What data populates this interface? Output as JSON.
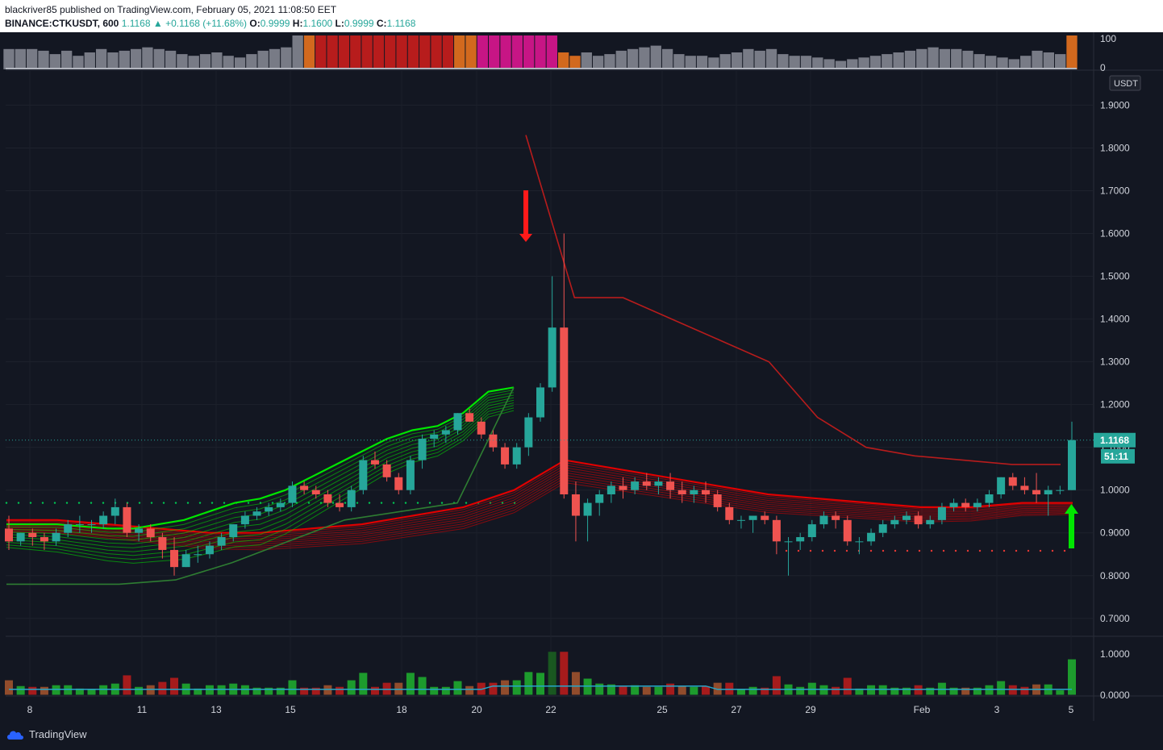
{
  "header": {
    "publisher_line": "blackriver85 published on TradingView.com, February 05, 2021 11:08:50 EET",
    "symbol": "BINANCE:CTKUSDT, 600",
    "last": "1.1168",
    "change": "+0.1168 (+11.68%)",
    "o_label": "O:",
    "o": "0.9999",
    "h_label": "H:",
    "h": "1.1600",
    "l_label": "L:",
    "l": "0.9999",
    "c_label": "C:",
    "c": "1.1168"
  },
  "price_axis": {
    "currency": "USDT",
    "ticks": [
      "1.9000",
      "1.8000",
      "1.7000",
      "1.6000",
      "1.5000",
      "1.4000",
      "1.3000",
      "1.2000",
      "1.1000",
      "1.0000",
      "0.9000",
      "0.8000",
      "0.7000"
    ],
    "last_price_label": "1.1168",
    "countdown_label": "51:11"
  },
  "osc_axis": {
    "ticks": [
      "100",
      "0"
    ]
  },
  "vol_axis": {
    "ticks": [
      "1.0000",
      "0.0000"
    ]
  },
  "time_axis": {
    "ticks": [
      "8",
      "11",
      "13",
      "15",
      "18",
      "20",
      "22",
      "25",
      "27",
      "29",
      "Feb",
      "3",
      "5"
    ]
  },
  "footer": {
    "brand": "TradingView"
  },
  "colors": {
    "background": "#131722",
    "up_candle": "#26a69a",
    "down_candle": "#ef5350",
    "ribbon_green": "#00e600",
    "ribbon_red": "#e00000",
    "trail_dark_red": "#b71c1c",
    "trail_dark_green": "#1b5e20"
  },
  "chart_data": {
    "type": "candlestick",
    "symbol": "BINANCE:CTKUSDT",
    "x": [
      "8",
      "11",
      "13",
      "15",
      "18",
      "20",
      "22",
      "25",
      "27",
      "29",
      "Feb",
      "3",
      "5"
    ],
    "ylim": [
      0.66,
      1.98
    ],
    "candles": [
      [
        0.91,
        0.94,
        0.86,
        0.88
      ],
      [
        0.88,
        0.9,
        0.87,
        0.9
      ],
      [
        0.9,
        0.91,
        0.87,
        0.89
      ],
      [
        0.89,
        0.9,
        0.86,
        0.88
      ],
      [
        0.88,
        0.91,
        0.87,
        0.9
      ],
      [
        0.9,
        0.93,
        0.89,
        0.92
      ],
      [
        0.92,
        0.94,
        0.9,
        0.92
      ],
      [
        0.92,
        0.93,
        0.9,
        0.92
      ],
      [
        0.92,
        0.95,
        0.91,
        0.94
      ],
      [
        0.94,
        0.98,
        0.92,
        0.96
      ],
      [
        0.96,
        0.97,
        0.89,
        0.9
      ],
      [
        0.9,
        0.92,
        0.88,
        0.91
      ],
      [
        0.91,
        0.92,
        0.88,
        0.89
      ],
      [
        0.89,
        0.9,
        0.84,
        0.86
      ],
      [
        0.86,
        0.89,
        0.8,
        0.82
      ],
      [
        0.82,
        0.86,
        0.82,
        0.85
      ],
      [
        0.85,
        0.87,
        0.83,
        0.85
      ],
      [
        0.85,
        0.88,
        0.84,
        0.87
      ],
      [
        0.87,
        0.9,
        0.86,
        0.89
      ],
      [
        0.89,
        0.92,
        0.88,
        0.92
      ],
      [
        0.92,
        0.95,
        0.91,
        0.94
      ],
      [
        0.94,
        0.96,
        0.93,
        0.95
      ],
      [
        0.95,
        0.97,
        0.94,
        0.96
      ],
      [
        0.96,
        0.98,
        0.95,
        0.97
      ],
      [
        0.97,
        1.02,
        0.96,
        1.01
      ],
      [
        1.01,
        1.02,
        0.99,
        1.0
      ],
      [
        1.0,
        1.01,
        0.98,
        0.99
      ],
      [
        0.99,
        1.0,
        0.96,
        0.97
      ],
      [
        0.97,
        0.99,
        0.95,
        0.96
      ],
      [
        0.96,
        1.01,
        0.95,
        1.0
      ],
      [
        1.0,
        1.08,
        0.99,
        1.07
      ],
      [
        1.07,
        1.09,
        1.05,
        1.06
      ],
      [
        1.06,
        1.07,
        1.02,
        1.03
      ],
      [
        1.03,
        1.04,
        0.99,
        1.0
      ],
      [
        1.0,
        1.08,
        0.99,
        1.07
      ],
      [
        1.07,
        1.13,
        1.05,
        1.12
      ],
      [
        1.12,
        1.14,
        1.1,
        1.13
      ],
      [
        1.13,
        1.15,
        1.11,
        1.14
      ],
      [
        1.14,
        1.18,
        1.13,
        1.18
      ],
      [
        1.18,
        1.19,
        1.16,
        1.16
      ],
      [
        1.16,
        1.17,
        1.12,
        1.13
      ],
      [
        1.13,
        1.14,
        1.09,
        1.1
      ],
      [
        1.1,
        1.11,
        1.05,
        1.06
      ],
      [
        1.06,
        1.11,
        1.05,
        1.1
      ],
      [
        1.1,
        1.18,
        1.08,
        1.17
      ],
      [
        1.17,
        1.25,
        1.16,
        1.24
      ],
      [
        1.24,
        1.5,
        1.23,
        1.38
      ],
      [
        1.38,
        1.6,
        0.98,
        0.99
      ],
      [
        0.99,
        1.02,
        0.88,
        0.94
      ],
      [
        0.94,
        0.98,
        0.88,
        0.97
      ],
      [
        0.97,
        1.0,
        0.94,
        0.99
      ],
      [
        0.99,
        1.02,
        0.97,
        1.01
      ],
      [
        1.01,
        1.03,
        0.98,
        1.0
      ],
      [
        1.0,
        1.03,
        0.99,
        1.02
      ],
      [
        1.02,
        1.04,
        1.0,
        1.01
      ],
      [
        1.01,
        1.03,
        0.99,
        1.02
      ],
      [
        1.02,
        1.04,
        0.98,
        1.0
      ],
      [
        1.0,
        1.02,
        0.97,
        0.99
      ],
      [
        0.99,
        1.01,
        0.97,
        1.0
      ],
      [
        1.0,
        1.02,
        0.97,
        0.99
      ],
      [
        0.99,
        1.0,
        0.95,
        0.96
      ],
      [
        0.96,
        0.97,
        0.92,
        0.93
      ],
      [
        0.93,
        0.94,
        0.91,
        0.93
      ],
      [
        0.93,
        0.94,
        0.9,
        0.94
      ],
      [
        0.94,
        0.95,
        0.92,
        0.93
      ],
      [
        0.93,
        0.94,
        0.85,
        0.88
      ],
      [
        0.88,
        0.89,
        0.8,
        0.88
      ],
      [
        0.88,
        0.9,
        0.86,
        0.89
      ],
      [
        0.89,
        0.93,
        0.88,
        0.92
      ],
      [
        0.92,
        0.95,
        0.91,
        0.94
      ],
      [
        0.94,
        0.95,
        0.91,
        0.93
      ],
      [
        0.93,
        0.94,
        0.87,
        0.88
      ],
      [
        0.88,
        0.89,
        0.85,
        0.88
      ],
      [
        0.88,
        0.91,
        0.87,
        0.9
      ],
      [
        0.9,
        0.93,
        0.89,
        0.92
      ],
      [
        0.92,
        0.94,
        0.91,
        0.93
      ],
      [
        0.93,
        0.95,
        0.92,
        0.94
      ],
      [
        0.94,
        0.95,
        0.91,
        0.92
      ],
      [
        0.92,
        0.94,
        0.91,
        0.93
      ],
      [
        0.93,
        0.97,
        0.92,
        0.96
      ],
      [
        0.96,
        0.98,
        0.95,
        0.97
      ],
      [
        0.97,
        0.98,
        0.95,
        0.96
      ],
      [
        0.96,
        0.98,
        0.95,
        0.97
      ],
      [
        0.97,
        1.0,
        0.96,
        0.99
      ],
      [
        0.99,
        1.03,
        0.98,
        1.03
      ],
      [
        1.03,
        1.04,
        1.0,
        1.01
      ],
      [
        1.01,
        1.03,
        0.99,
        1.0
      ],
      [
        1.0,
        1.04,
        0.97,
        0.99
      ],
      [
        0.99,
        1.01,
        0.94,
        1.0
      ],
      [
        1.0,
        1.01,
        0.99,
        1.0
      ],
      [
        0.9999,
        1.16,
        0.9999,
        1.1168
      ]
    ],
    "ribbon_green_top": [
      0.92,
      0.92,
      0.92,
      0.915,
      0.91,
      0.91,
      0.92,
      0.93,
      0.95,
      0.97,
      0.98,
      1.0,
      1.03,
      1.06,
      1.09,
      1.12,
      1.14,
      1.15,
      1.18,
      1.23,
      1.24
    ],
    "ribbon_red_top": [
      0.93,
      0.93,
      0.92,
      0.91,
      0.9,
      0.9,
      0.91,
      0.92,
      0.94,
      0.96,
      1.0,
      1.07,
      1.05,
      1.03,
      1.01,
      0.99,
      0.98,
      0.97,
      0.96,
      0.96,
      0.97,
      0.97
    ],
    "stepped_upper": [
      1.83,
      1.45,
      1.45,
      1.4,
      1.35,
      1.3,
      1.17,
      1.1,
      1.08,
      1.07,
      1.06,
      1.06
    ],
    "stepped_lower": [
      0.78,
      0.78,
      0.78,
      0.79,
      0.83,
      0.88,
      0.93,
      0.95,
      0.97,
      1.24
    ]
  }
}
